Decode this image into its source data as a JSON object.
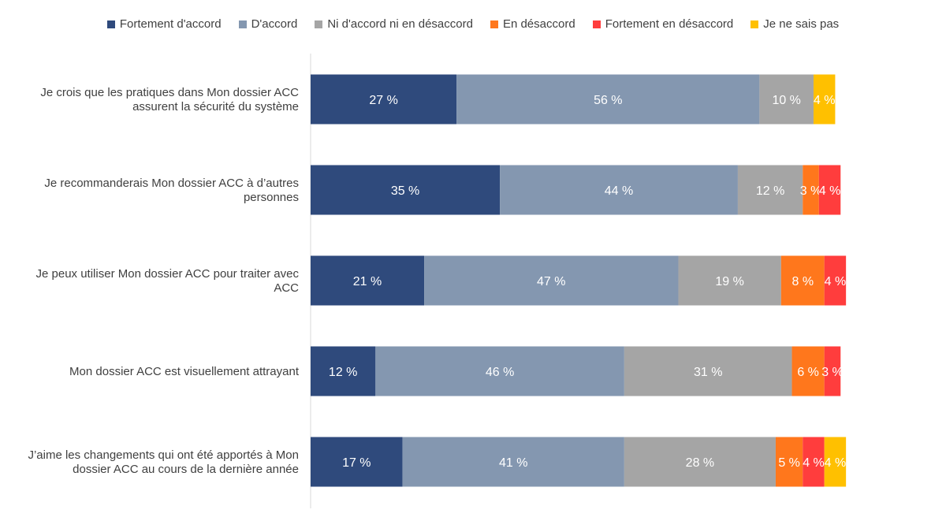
{
  "chart_data": {
    "type": "bar",
    "orientation": "horizontal",
    "stacked": true,
    "legend_position": "top",
    "grid": false,
    "xlim": [
      0,
      100
    ],
    "categories": [
      [
        "Je crois que les pratiques dans Mon dossier ACC",
        "assurent la sécurité du système"
      ],
      [
        "Je recommanderais Mon dossier ACC à d’autres",
        "personnes"
      ],
      [
        "Je peux utiliser Mon dossier ACC pour traiter avec",
        "ACC"
      ],
      [
        "Mon dossier ACC est visuellement attrayant"
      ],
      [
        "J’aime les changements qui ont été apportés à Mon",
        "dossier ACC au cours de la dernière année"
      ]
    ],
    "series": [
      {
        "name": "Fortement d'accord",
        "color": "#2F4A7C",
        "values": [
          27,
          35,
          21,
          12,
          17
        ]
      },
      {
        "name": "D'accord",
        "color": "#8497B0",
        "values": [
          56,
          44,
          47,
          46,
          41
        ]
      },
      {
        "name": "Ni d'accord ni en désaccord",
        "color": "#A5A5A5",
        "values": [
          10,
          12,
          19,
          31,
          28
        ]
      },
      {
        "name": "En désaccord",
        "color": "#FF771C",
        "values": [
          null,
          3,
          8,
          6,
          5
        ]
      },
      {
        "name": "Fortement en désaccord",
        "color": "#FF3D3D",
        "values": [
          null,
          4,
          4,
          3,
          4
        ]
      },
      {
        "name": "Je ne sais pas",
        "color": "#FFC000",
        "values": [
          4,
          null,
          null,
          null,
          4
        ]
      }
    ],
    "value_suffix": " %"
  }
}
